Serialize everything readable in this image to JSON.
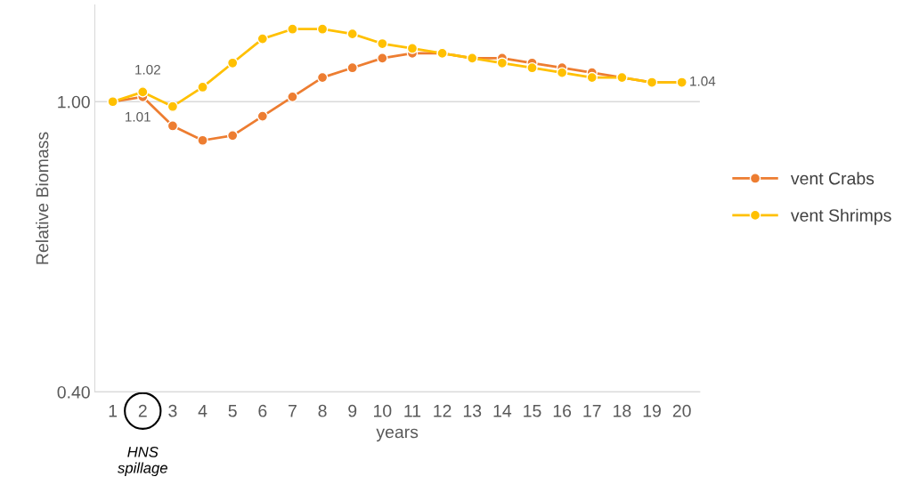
{
  "chart_data": {
    "type": "line",
    "ylabel": "Relative Biomass",
    "xlabel": "years",
    "categories": [
      "1",
      "2",
      "3",
      "4",
      "5",
      "6",
      "7",
      "8",
      "9",
      "10",
      "11",
      "12",
      "13",
      "14",
      "15",
      "16",
      "17",
      "18",
      "19",
      "20"
    ],
    "series": [
      {
        "name": "vent Crabs",
        "color": "#ed7d31",
        "values": [
          1.0,
          1.01,
          0.95,
          0.92,
          0.93,
          0.97,
          1.01,
          1.05,
          1.07,
          1.09,
          1.1,
          1.1,
          1.09,
          1.09,
          1.08,
          1.07,
          1.06,
          1.05,
          1.04,
          1.04
        ],
        "value_labels": [
          null,
          "1.01",
          null,
          null,
          null,
          null,
          null,
          null,
          null,
          null,
          null,
          null,
          null,
          null,
          null,
          null,
          null,
          null,
          null,
          null
        ]
      },
      {
        "name": "vent Shrimps",
        "color": "#ffc000",
        "values": [
          1.0,
          1.02,
          0.99,
          1.03,
          1.08,
          1.13,
          1.15,
          1.15,
          1.14,
          1.12,
          1.11,
          1.1,
          1.09,
          1.08,
          1.07,
          1.06,
          1.05,
          1.05,
          1.04,
          1.04
        ],
        "value_labels": [
          null,
          "1.02",
          null,
          null,
          null,
          null,
          null,
          null,
          null,
          null,
          null,
          null,
          null,
          null,
          null,
          null,
          null,
          null,
          null,
          "1.04"
        ]
      }
    ],
    "ylim": [
      0.4,
      1.2
    ],
    "yticks": [
      {
        "value": 0.4,
        "label": "0.40"
      },
      {
        "value": 1.0,
        "label": "1.00"
      }
    ],
    "grid": "y",
    "legend": "right",
    "marker": "circle",
    "line_style": "solid",
    "annotations": [
      "HNS\nspillage"
    ]
  }
}
